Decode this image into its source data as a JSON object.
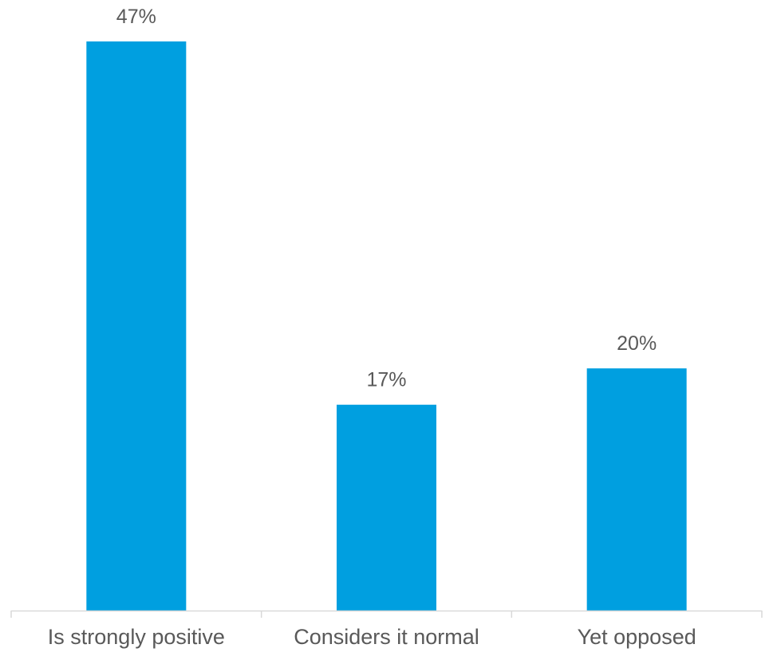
{
  "chart_data": {
    "type": "bar",
    "categories": [
      "Is strongly positive",
      "Considers it normal",
      "Yet opposed"
    ],
    "values": [
      47,
      17,
      20
    ],
    "data_labels": [
      "47%",
      "17%",
      "20%"
    ],
    "ylim": [
      0,
      47
    ],
    "grid": false,
    "legend": "none",
    "bar_color": "#009fe0",
    "axis_color": "#d9d9d9",
    "label_color": "#595959"
  }
}
